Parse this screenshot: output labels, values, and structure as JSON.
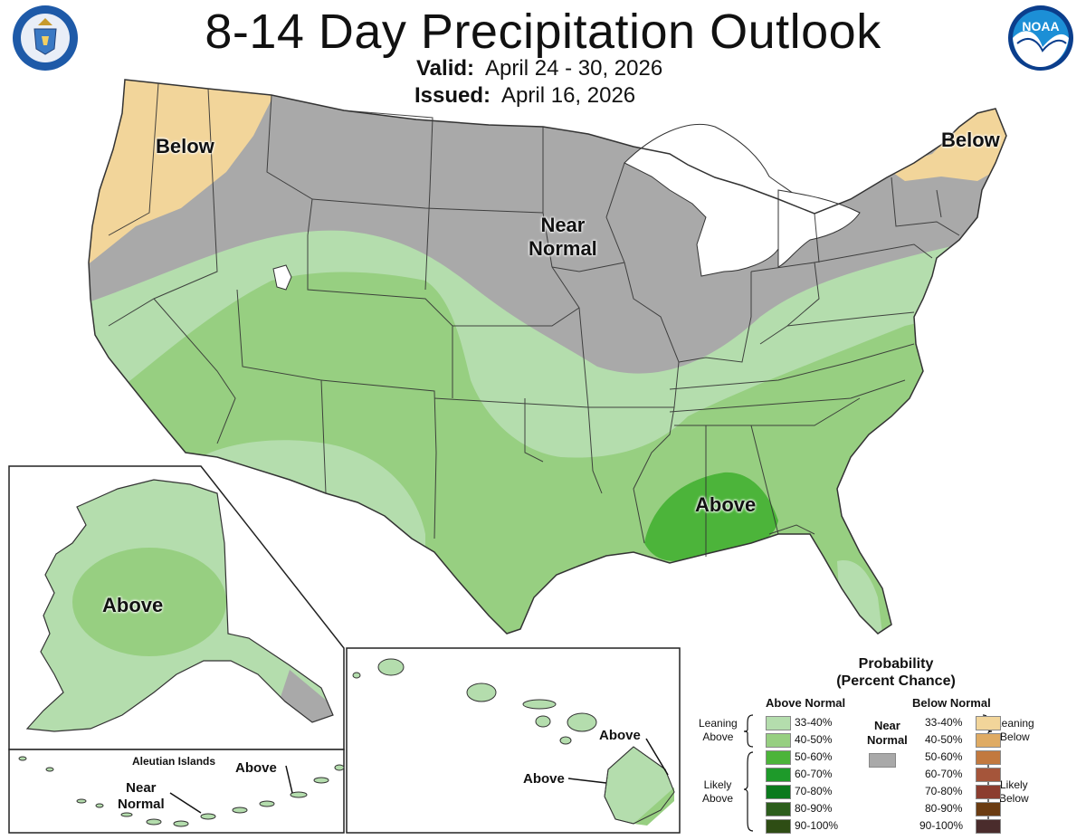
{
  "header": {
    "title": "8-14 Day Precipitation Outlook",
    "valid_label": "Valid:",
    "valid_value": "April 24 - 30, 2026",
    "issued_label": "Issued:",
    "issued_value": "April 16, 2026"
  },
  "logos": {
    "left_seal_text": "DEPARTMENT OF COMMERCE · UNITED STATES OF AMERICA",
    "right_logo_text": "NOAA"
  },
  "map_labels": {
    "northwest": "Below",
    "northeast": "Below",
    "central_line1": "Near",
    "central_line2": "Normal",
    "gulf": "Above",
    "alaska": "Above",
    "aleutians_title": "Aleutian Islands",
    "aleutians_above": "Above",
    "aleutians_near_line1": "Near",
    "aleutians_near_line2": "Normal",
    "hawaii_above_1": "Above",
    "hawaii_above_2": "Above"
  },
  "colors": {
    "below_33_40": "#f2d59a",
    "below_40_50": "#dfab63",
    "below_50_60": "#c2793f",
    "below_60_70": "#a5553a",
    "below_70_80": "#8c3d2f",
    "below_80_90": "#6b3c12",
    "below_90_100": "#4a2c2c",
    "above_33_40": "#b4ddad",
    "above_40_50": "#97cf81",
    "above_50_60": "#4cb43a",
    "above_60_70": "#1e9a2a",
    "above_70_80": "#0b7a1d",
    "above_80_90": "#2c5e1c",
    "above_90_100": "#2e4d14",
    "near_normal": "#a9a9a9",
    "water": "#ffffff",
    "border": "#333333"
  },
  "legend": {
    "title_line1": "Probability",
    "title_line2": "(Percent Chance)",
    "above_header": "Above Normal",
    "below_header": "Below Normal",
    "near_header_line1": "Near",
    "near_header_line2": "Normal",
    "rows": [
      "33-40%",
      "40-50%",
      "50-60%",
      "60-70%",
      "70-80%",
      "80-90%",
      "90-100%"
    ],
    "leaning_above_line1": "Leaning",
    "leaning_above_line2": "Above",
    "likely_above_line1": "Likely",
    "likely_above_line2": "Above",
    "leaning_below_line1": "Leaning",
    "leaning_below_line2": "Below",
    "likely_below_line1": "Likely",
    "likely_below_line2": "Below"
  }
}
